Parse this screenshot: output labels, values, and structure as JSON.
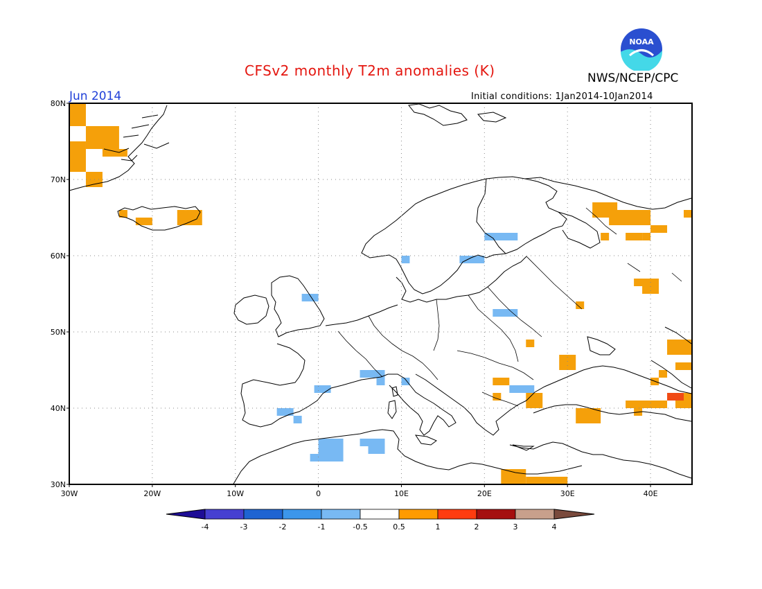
{
  "title": "CFSv2 monthly T2m anomalies (K)",
  "agency": "NWS/NCEP/CPC",
  "logo_text": "NOAA",
  "month_label": "Jun 2014",
  "initial_conditions": "Initial conditions: 1Jan2014-10Jan2014",
  "map": {
    "lon_range": [
      -30,
      45
    ],
    "lat_range": [
      30,
      80
    ],
    "lon_labels": [
      "30W",
      "20W",
      "10W",
      "0",
      "10E",
      "20E",
      "30E",
      "40E"
    ],
    "lat_labels": [
      "30N",
      "40N",
      "50N",
      "60N",
      "70N",
      "80N"
    ],
    "grid": "dotted"
  },
  "colorbar": {
    "labels": [
      "-4",
      "-3",
      "-2",
      "-1",
      "-0.5",
      "0.5",
      "1",
      "2",
      "3",
      "4"
    ],
    "colors": [
      "#1e0d96",
      "#4640d1",
      "#1e64d2",
      "#3c96ea",
      "#78b9f3",
      "#ffffff",
      "#ff9b00",
      "#ff3c0f",
      "#a50f0f",
      "#c8a08c",
      "#7a4a3c"
    ]
  },
  "colors": {
    "warm": "#f5a00a",
    "hot": "#f04a14",
    "cool": "#78b9f3",
    "title": "#e4160f",
    "month": "#1f3fd8"
  }
}
